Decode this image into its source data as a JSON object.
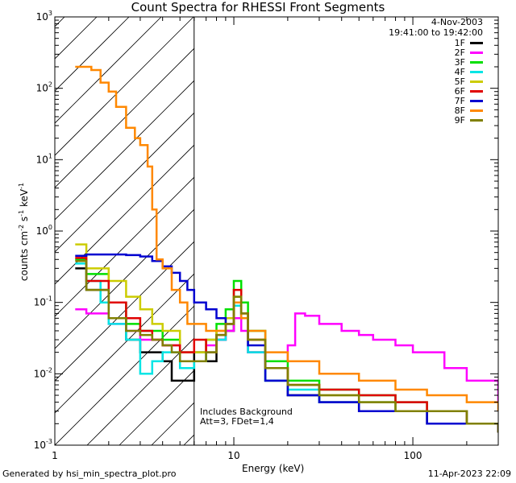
{
  "chart_data": {
    "type": "line",
    "title": "Count Spectra for RHESSI Front Segments",
    "xlabel": "Energy (keV)",
    "ylabel_parts": [
      "counts cm",
      "-2",
      " s",
      "-1",
      " keV",
      "-1"
    ],
    "xscale": "log",
    "yscale": "log",
    "xlim": [
      1.0,
      300.0
    ],
    "ylim": [
      0.001,
      1000.0
    ],
    "x_ticks": [
      {
        "value": 1,
        "label": "1"
      },
      {
        "value": 10,
        "label": "10"
      },
      {
        "value": 100,
        "label": "100"
      }
    ],
    "y_ticks": [
      {
        "value": 0.001,
        "base": "10",
        "exp": "-3"
      },
      {
        "value": 0.01,
        "base": "10",
        "exp": "-2"
      },
      {
        "value": 0.1,
        "base": "10",
        "exp": "-1"
      },
      {
        "value": 1,
        "base": "10",
        "exp": "0"
      },
      {
        "value": 10,
        "base": "10",
        "exp": "1"
      },
      {
        "value": 100,
        "base": "10",
        "exp": "2"
      },
      {
        "value": 1000,
        "base": "10",
        "exp": "3"
      }
    ],
    "attenuator_edge_kev": 6.0,
    "hatched_region": [
      1.0,
      6.0
    ],
    "legend_header": [
      "4-Nov-2003",
      "19:41:00 to 19:42:00"
    ],
    "annotation_lines": [
      "Includes Background",
      "Att=3, FDet=1,4"
    ],
    "series": [
      {
        "name": "1F",
        "color": "#000000",
        "points": [
          [
            1.3,
            0.3
          ],
          [
            1.5,
            0.15
          ],
          [
            2.0,
            0.06
          ],
          [
            2.5,
            0.03
          ],
          [
            3.0,
            0.02
          ],
          [
            3.5,
            0.02
          ],
          [
            4.0,
            0.015
          ],
          [
            4.5,
            0.008
          ],
          [
            5.0,
            0.008
          ],
          [
            6.0,
            0.02
          ],
          [
            7.0,
            0.015
          ],
          [
            8.0,
            0.03
          ],
          [
            9.0,
            0.04
          ],
          [
            10.0,
            0.1
          ],
          [
            11.0,
            0.06
          ],
          [
            12.0,
            0.02
          ],
          [
            15.0,
            0.008
          ],
          [
            20.0,
            0.005
          ],
          [
            30.0,
            0.004
          ],
          [
            50.0,
            0.003
          ],
          [
            80.0,
            0.003
          ],
          [
            120.0,
            0.002
          ],
          [
            200.0,
            0.002
          ],
          [
            300.0,
            0.0015
          ]
        ]
      },
      {
        "name": "2F",
        "color": "#ff00ff",
        "points": [
          [
            1.3,
            0.08
          ],
          [
            1.5,
            0.07
          ],
          [
            2.0,
            0.05
          ],
          [
            2.5,
            0.04
          ],
          [
            3.0,
            0.03
          ],
          [
            4.0,
            0.025
          ],
          [
            5.0,
            0.02
          ],
          [
            6.0,
            0.02
          ],
          [
            7.0,
            0.025
          ],
          [
            8.0,
            0.03
          ],
          [
            9.0,
            0.04
          ],
          [
            10.0,
            0.06
          ],
          [
            11.0,
            0.04
          ],
          [
            12.0,
            0.02
          ],
          [
            15.0,
            0.015
          ],
          [
            18.0,
            0.015
          ],
          [
            20.0,
            0.025
          ],
          [
            22.0,
            0.07
          ],
          [
            25.0,
            0.065
          ],
          [
            30.0,
            0.05
          ],
          [
            40.0,
            0.04
          ],
          [
            50.0,
            0.035
          ],
          [
            60.0,
            0.03
          ],
          [
            80.0,
            0.025
          ],
          [
            100.0,
            0.02
          ],
          [
            150.0,
            0.012
          ],
          [
            200.0,
            0.008
          ],
          [
            300.0,
            0.004
          ]
        ]
      },
      {
        "name": "3F",
        "color": "#00e000",
        "points": [
          [
            1.3,
            0.4
          ],
          [
            1.5,
            0.25
          ],
          [
            2.0,
            0.1
          ],
          [
            2.5,
            0.05
          ],
          [
            3.0,
            0.04
          ],
          [
            4.0,
            0.03
          ],
          [
            5.0,
            0.02
          ],
          [
            6.0,
            0.02
          ],
          [
            7.0,
            0.03
          ],
          [
            8.0,
            0.05
          ],
          [
            9.0,
            0.08
          ],
          [
            10.0,
            0.2
          ],
          [
            11.0,
            0.1
          ],
          [
            12.0,
            0.04
          ],
          [
            15.0,
            0.015
          ],
          [
            20.0,
            0.008
          ],
          [
            30.0,
            0.006
          ],
          [
            50.0,
            0.005
          ],
          [
            80.0,
            0.004
          ],
          [
            120.0,
            0.003
          ],
          [
            200.0,
            0.002
          ],
          [
            300.0,
            0.0015
          ]
        ]
      },
      {
        "name": "4F",
        "color": "#00e5e5",
        "points": [
          [
            1.3,
            0.35
          ],
          [
            1.5,
            0.2
          ],
          [
            1.8,
            0.1
          ],
          [
            2.0,
            0.05
          ],
          [
            2.5,
            0.03
          ],
          [
            3.0,
            0.01
          ],
          [
            3.5,
            0.015
          ],
          [
            4.0,
            0.02
          ],
          [
            5.0,
            0.012
          ],
          [
            6.0,
            0.015
          ],
          [
            7.0,
            0.02
          ],
          [
            8.0,
            0.03
          ],
          [
            9.0,
            0.05
          ],
          [
            10.0,
            0.09
          ],
          [
            11.0,
            0.06
          ],
          [
            12.0,
            0.02
          ],
          [
            15.0,
            0.008
          ],
          [
            20.0,
            0.006
          ],
          [
            30.0,
            0.004
          ],
          [
            50.0,
            0.004
          ],
          [
            80.0,
            0.003
          ],
          [
            120.0,
            0.003
          ],
          [
            200.0,
            0.002
          ],
          [
            300.0,
            0.0015
          ]
        ]
      },
      {
        "name": "5F",
        "color": "#cccc00",
        "points": [
          [
            1.3,
            0.65
          ],
          [
            1.5,
            0.3
          ],
          [
            2.0,
            0.2
          ],
          [
            2.5,
            0.12
          ],
          [
            3.0,
            0.08
          ],
          [
            3.5,
            0.05
          ],
          [
            4.0,
            0.04
          ],
          [
            5.0,
            0.02
          ],
          [
            6.0,
            0.02
          ],
          [
            7.0,
            0.03
          ],
          [
            8.0,
            0.04
          ],
          [
            9.0,
            0.06
          ],
          [
            10.0,
            0.12
          ],
          [
            11.0,
            0.07
          ],
          [
            12.0,
            0.03
          ],
          [
            15.0,
            0.012
          ],
          [
            20.0,
            0.007
          ],
          [
            30.0,
            0.005
          ],
          [
            50.0,
            0.004
          ],
          [
            80.0,
            0.003
          ],
          [
            120.0,
            0.003
          ],
          [
            200.0,
            0.002
          ],
          [
            300.0,
            0.0015
          ]
        ]
      },
      {
        "name": "6F",
        "color": "#e00000",
        "points": [
          [
            1.3,
            0.42
          ],
          [
            1.5,
            0.2
          ],
          [
            2.0,
            0.1
          ],
          [
            2.5,
            0.06
          ],
          [
            3.0,
            0.04
          ],
          [
            3.5,
            0.03
          ],
          [
            4.0,
            0.025
          ],
          [
            5.0,
            0.02
          ],
          [
            6.0,
            0.03
          ],
          [
            7.0,
            0.02
          ],
          [
            8.0,
            0.035
          ],
          [
            9.0,
            0.05
          ],
          [
            10.0,
            0.15
          ],
          [
            11.0,
            0.07
          ],
          [
            12.0,
            0.03
          ],
          [
            15.0,
            0.012
          ],
          [
            20.0,
            0.007
          ],
          [
            30.0,
            0.006
          ],
          [
            50.0,
            0.005
          ],
          [
            80.0,
            0.004
          ],
          [
            120.0,
            0.003
          ],
          [
            200.0,
            0.002
          ],
          [
            300.0,
            0.0015
          ]
        ]
      },
      {
        "name": "7F",
        "color": "#0000d0",
        "points": [
          [
            1.3,
            0.45
          ],
          [
            1.5,
            0.47
          ],
          [
            2.0,
            0.47
          ],
          [
            2.5,
            0.46
          ],
          [
            3.0,
            0.44
          ],
          [
            3.5,
            0.38
          ],
          [
            4.0,
            0.32
          ],
          [
            4.5,
            0.26
          ],
          [
            5.0,
            0.2
          ],
          [
            5.5,
            0.15
          ],
          [
            6.0,
            0.1
          ],
          [
            7.0,
            0.08
          ],
          [
            8.0,
            0.06
          ],
          [
            9.0,
            0.05
          ],
          [
            10.0,
            0.1
          ],
          [
            11.0,
            0.06
          ],
          [
            12.0,
            0.025
          ],
          [
            15.0,
            0.008
          ],
          [
            20.0,
            0.005
          ],
          [
            30.0,
            0.004
          ],
          [
            50.0,
            0.003
          ],
          [
            80.0,
            0.003
          ],
          [
            120.0,
            0.002
          ],
          [
            200.0,
            0.002
          ],
          [
            300.0,
            0.0015
          ]
        ]
      },
      {
        "name": "8F",
        "color": "#ff8800",
        "points": [
          [
            1.3,
            200.0
          ],
          [
            1.6,
            180.0
          ],
          [
            1.8,
            120.0
          ],
          [
            2.0,
            90.0
          ],
          [
            2.2,
            55.0
          ],
          [
            2.5,
            28.0
          ],
          [
            2.8,
            20.0
          ],
          [
            3.0,
            16.0
          ],
          [
            3.3,
            8.0
          ],
          [
            3.5,
            2.0
          ],
          [
            3.7,
            0.4
          ],
          [
            4.0,
            0.3
          ],
          [
            4.5,
            0.15
          ],
          [
            5.0,
            0.1
          ],
          [
            5.5,
            0.05
          ],
          [
            6.0,
            0.05
          ],
          [
            7.0,
            0.04
          ],
          [
            8.0,
            0.04
          ],
          [
            9.0,
            0.05
          ],
          [
            10.0,
            0.1
          ],
          [
            11.0,
            0.06
          ],
          [
            12.0,
            0.04
          ],
          [
            15.0,
            0.02
          ],
          [
            20.0,
            0.015
          ],
          [
            30.0,
            0.01
          ],
          [
            50.0,
            0.008
          ],
          [
            80.0,
            0.006
          ],
          [
            120.0,
            0.005
          ],
          [
            200.0,
            0.004
          ],
          [
            300.0,
            0.003
          ]
        ]
      },
      {
        "name": "9F",
        "color": "#808000",
        "points": [
          [
            1.3,
            0.38
          ],
          [
            1.5,
            0.15
          ],
          [
            2.0,
            0.06
          ],
          [
            2.5,
            0.04
          ],
          [
            3.0,
            0.035
          ],
          [
            3.5,
            0.03
          ],
          [
            4.0,
            0.025
          ],
          [
            4.5,
            0.02
          ],
          [
            5.0,
            0.015
          ],
          [
            6.0,
            0.015
          ],
          [
            7.0,
            0.02
          ],
          [
            8.0,
            0.035
          ],
          [
            9.0,
            0.05
          ],
          [
            10.0,
            0.12
          ],
          [
            11.0,
            0.07
          ],
          [
            12.0,
            0.03
          ],
          [
            15.0,
            0.012
          ],
          [
            20.0,
            0.007
          ],
          [
            30.0,
            0.005
          ],
          [
            50.0,
            0.004
          ],
          [
            80.0,
            0.003
          ],
          [
            120.0,
            0.003
          ],
          [
            200.0,
            0.002
          ],
          [
            300.0,
            0.0015
          ]
        ]
      }
    ]
  },
  "footer": {
    "generated_by": "Generated by hsi_min_spectra_plot.pro",
    "timestamp": "11-Apr-2023 22:09"
  }
}
